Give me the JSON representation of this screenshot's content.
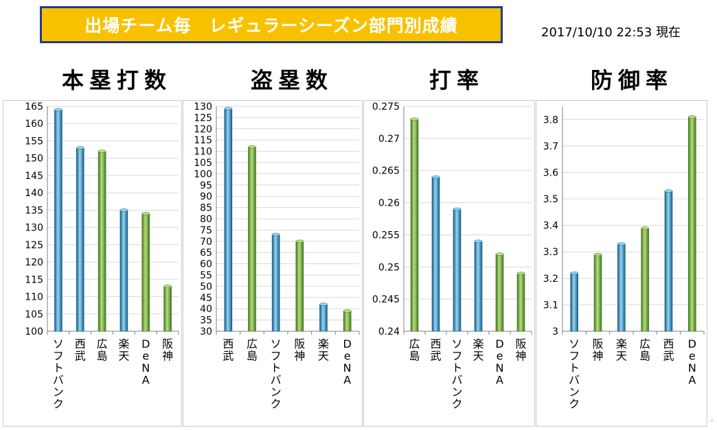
{
  "header": {
    "banner": "出場チーム毎　レギュラーシーズン部門別成績",
    "timestamp": "2017/10/10 22:53  現在"
  },
  "colors": {
    "blue": "#2a8fc2",
    "green": "#6aa531",
    "banner_bg": "#f8c100",
    "banner_border": "#1f3c88"
  },
  "chart_data": [
    {
      "type": "bar",
      "title": "本塁打数",
      "categories": [
        "ソフトバンク",
        "西武",
        "広島",
        "楽天",
        "DeNA",
        "阪神"
      ],
      "values": [
        164,
        153,
        152,
        135,
        134,
        113
      ],
      "colors": [
        "blue",
        "blue",
        "green",
        "blue",
        "green",
        "green"
      ],
      "ylim": [
        100,
        165
      ],
      "yticks": [
        "100",
        "105",
        "110",
        "115",
        "120",
        "125",
        "130",
        "135",
        "140",
        "145",
        "150",
        "155",
        "160",
        "165"
      ],
      "grid": true
    },
    {
      "type": "bar",
      "title": "盗塁数",
      "categories": [
        "西武",
        "広島",
        "ソフトバンク",
        "阪神",
        "楽天",
        "DeNA"
      ],
      "values": [
        129,
        112,
        73,
        70,
        42,
        39
      ],
      "colors": [
        "blue",
        "green",
        "blue",
        "green",
        "blue",
        "green"
      ],
      "ylim": [
        30,
        130
      ],
      "yticks": [
        "30",
        "35",
        "40",
        "45",
        "50",
        "55",
        "60",
        "65",
        "70",
        "75",
        "80",
        "85",
        "90",
        "95",
        "100",
        "105",
        "110",
        "115",
        "120",
        "125",
        "130"
      ],
      "grid": true
    },
    {
      "type": "bar",
      "title": "打率",
      "categories": [
        "広島",
        "西武",
        "ソフトバンク",
        "楽天",
        "DeNA",
        "阪神"
      ],
      "values": [
        0.273,
        0.264,
        0.259,
        0.254,
        0.252,
        0.249
      ],
      "colors": [
        "green",
        "blue",
        "blue",
        "blue",
        "green",
        "green"
      ],
      "ylim": [
        0.24,
        0.275
      ],
      "yticks": [
        "0.24",
        "0.245",
        "0.25",
        "0.255",
        "0.26",
        "0.265",
        "0.27",
        "0.275"
      ],
      "grid": true
    },
    {
      "type": "bar",
      "title": "防御率",
      "categories": [
        "ソフトバンク",
        "阪神",
        "楽天",
        "広島",
        "西武",
        "DeNA"
      ],
      "values": [
        3.22,
        3.29,
        3.33,
        3.39,
        3.53,
        3.81
      ],
      "colors": [
        "blue",
        "green",
        "blue",
        "green",
        "blue",
        "green"
      ],
      "ylim": [
        3,
        3.85
      ],
      "yticks": [
        "3",
        "3.1",
        "3.2",
        "3.3",
        "3.4",
        "3.5",
        "3.6",
        "3.7",
        "3.8"
      ],
      "grid": true
    }
  ]
}
